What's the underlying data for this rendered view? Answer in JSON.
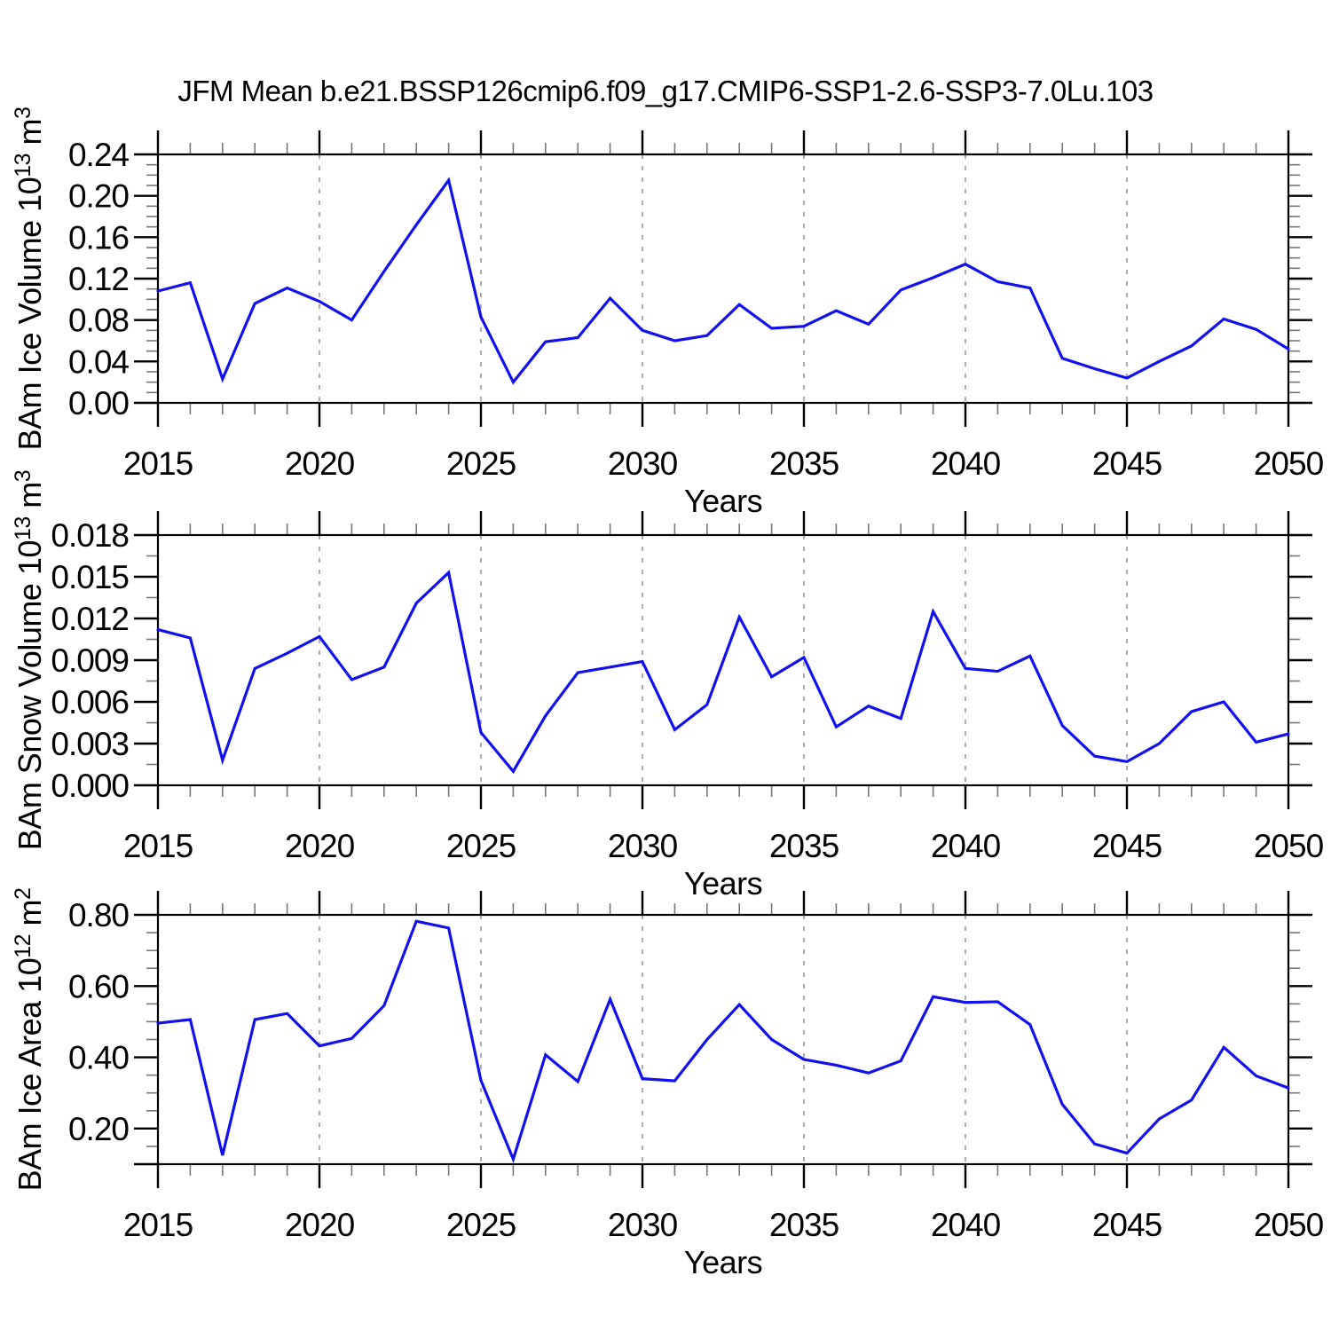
{
  "title": "JFM Mean b.e21.BSSP126cmip6.f09_g17.CMIP6-SSP1-2.6-SSP3-7.0Lu.103",
  "xlabel": "Years",
  "line_color": "#1111ee",
  "grid_color": "#8a8a8a",
  "axis_color": "#000000",
  "chart_data": [
    {
      "type": "line",
      "name": "ice-volume",
      "ylabel_plain": "BAm Ice Volume 10^13 m^3",
      "ylabel_parts": [
        {
          "t": "BAm Ice Volume 10"
        },
        {
          "t": "13",
          "sup": true
        },
        {
          "t": " m"
        },
        {
          "t": "3",
          "sup": true
        }
      ],
      "xlabel": "Years",
      "xlim": [
        2015,
        2050
      ],
      "ylim": [
        0.0,
        0.24
      ],
      "x": [
        2015,
        2016,
        2017,
        2018,
        2019,
        2020,
        2021,
        2022,
        2023,
        2024,
        2025,
        2026,
        2027,
        2028,
        2029,
        2030,
        2031,
        2032,
        2033,
        2034,
        2035,
        2036,
        2037,
        2038,
        2039,
        2040,
        2041,
        2042,
        2043,
        2044,
        2045,
        2046,
        2047,
        2048,
        2049,
        2050
      ],
      "values": [
        0.108,
        0.116,
        0.023,
        0.096,
        0.111,
        0.098,
        0.08,
        0.127,
        0.172,
        0.215,
        0.083,
        0.02,
        0.059,
        0.063,
        0.101,
        0.07,
        0.06,
        0.065,
        0.095,
        0.072,
        0.074,
        0.089,
        0.076,
        0.109,
        0.121,
        0.134,
        0.117,
        0.111,
        0.043,
        0.033,
        0.024,
        0.04,
        0.055,
        0.081,
        0.071,
        0.052
      ],
      "yticks": [
        {
          "v": 0.0,
          "label": "0.00"
        },
        {
          "v": 0.04,
          "label": "0.04"
        },
        {
          "v": 0.08,
          "label": "0.08"
        },
        {
          "v": 0.12,
          "label": "0.12"
        },
        {
          "v": 0.16,
          "label": "0.16"
        },
        {
          "v": 0.2,
          "label": "0.20"
        },
        {
          "v": 0.24,
          "label": "0.24"
        }
      ],
      "y_minor_step": 0.01,
      "xticks_major": [
        2015,
        2020,
        2025,
        2030,
        2035,
        2040,
        2045,
        2050
      ],
      "grid_years": [
        2020,
        2025,
        2030,
        2035,
        2040,
        2045
      ],
      "grid_on": true
    },
    {
      "type": "line",
      "name": "snow-volume",
      "ylabel_plain": "BAm Snow Volume 10^13 m^3",
      "ylabel_parts": [
        {
          "t": "BAm Snow Volume 10"
        },
        {
          "t": "13",
          "sup": true
        },
        {
          "t": " m"
        },
        {
          "t": "3",
          "sup": true
        }
      ],
      "xlabel": "Years",
      "xlim": [
        2015,
        2050
      ],
      "ylim": [
        0.0,
        0.018
      ],
      "x": [
        2015,
        2016,
        2017,
        2018,
        2019,
        2020,
        2021,
        2022,
        2023,
        2024,
        2025,
        2026,
        2027,
        2028,
        2029,
        2030,
        2031,
        2032,
        2033,
        2034,
        2035,
        2036,
        2037,
        2038,
        2039,
        2040,
        2041,
        2042,
        2043,
        2044,
        2045,
        2046,
        2047,
        2048,
        2049,
        2050
      ],
      "values": [
        0.0112,
        0.0106,
        0.0018,
        0.0084,
        0.0095,
        0.0107,
        0.0076,
        0.0085,
        0.0131,
        0.0153,
        0.0038,
        0.001,
        0.005,
        0.0081,
        0.0085,
        0.0089,
        0.004,
        0.0058,
        0.0121,
        0.0078,
        0.0092,
        0.0042,
        0.0057,
        0.0048,
        0.0125,
        0.0084,
        0.0082,
        0.0093,
        0.0043,
        0.0021,
        0.0017,
        0.003,
        0.0053,
        0.006,
        0.0031,
        0.0037
      ],
      "yticks": [
        {
          "v": 0.0,
          "label": "0.000"
        },
        {
          "v": 0.003,
          "label": "0.003"
        },
        {
          "v": 0.006,
          "label": "0.006"
        },
        {
          "v": 0.009,
          "label": "0.009"
        },
        {
          "v": 0.012,
          "label": "0.012"
        },
        {
          "v": 0.015,
          "label": "0.015"
        },
        {
          "v": 0.018,
          "label": "0.018"
        }
      ],
      "y_minor_step": 0.0015,
      "xticks_major": [
        2015,
        2020,
        2025,
        2030,
        2035,
        2040,
        2045,
        2050
      ],
      "grid_years": [
        2020,
        2025,
        2030,
        2035,
        2040,
        2045
      ],
      "grid_on": true
    },
    {
      "type": "line",
      "name": "ice-area",
      "ylabel_plain": "BAm Ice Area 10^12 m^2",
      "ylabel_parts": [
        {
          "t": "BAm Ice Area 10"
        },
        {
          "t": "12",
          "sup": true
        },
        {
          "t": " m"
        },
        {
          "t": "2",
          "sup": true
        }
      ],
      "xlabel": "Years",
      "xlim": [
        2015,
        2050
      ],
      "ylim": [
        0.1,
        0.8
      ],
      "x": [
        2015,
        2016,
        2017,
        2018,
        2019,
        2020,
        2021,
        2022,
        2023,
        2024,
        2025,
        2026,
        2027,
        2028,
        2029,
        2030,
        2031,
        2032,
        2033,
        2034,
        2035,
        2036,
        2037,
        2038,
        2039,
        2040,
        2041,
        2042,
        2043,
        2044,
        2045,
        2046,
        2047,
        2048,
        2049,
        2050
      ],
      "values": [
        0.496,
        0.506,
        0.125,
        0.506,
        0.523,
        0.432,
        0.453,
        0.545,
        0.782,
        0.763,
        0.335,
        0.114,
        0.407,
        0.332,
        0.563,
        0.34,
        0.334,
        0.45,
        0.548,
        0.45,
        0.394,
        0.378,
        0.356,
        0.39,
        0.57,
        0.554,
        0.556,
        0.492,
        0.268,
        0.157,
        0.131,
        0.227,
        0.28,
        0.428,
        0.348,
        0.314
      ],
      "yticks": [
        {
          "v": 0.2,
          "label": "0.20"
        },
        {
          "v": 0.4,
          "label": "0.40"
        },
        {
          "v": 0.6,
          "label": "0.60"
        },
        {
          "v": 0.8,
          "label": "0.80"
        }
      ],
      "y_minor_step": 0.05,
      "y_edge_tick": 0.1,
      "xticks_major": [
        2015,
        2020,
        2025,
        2030,
        2035,
        2040,
        2045,
        2050
      ],
      "grid_years": [
        2020,
        2025,
        2030,
        2035,
        2040,
        2045
      ],
      "grid_on": true
    }
  ]
}
